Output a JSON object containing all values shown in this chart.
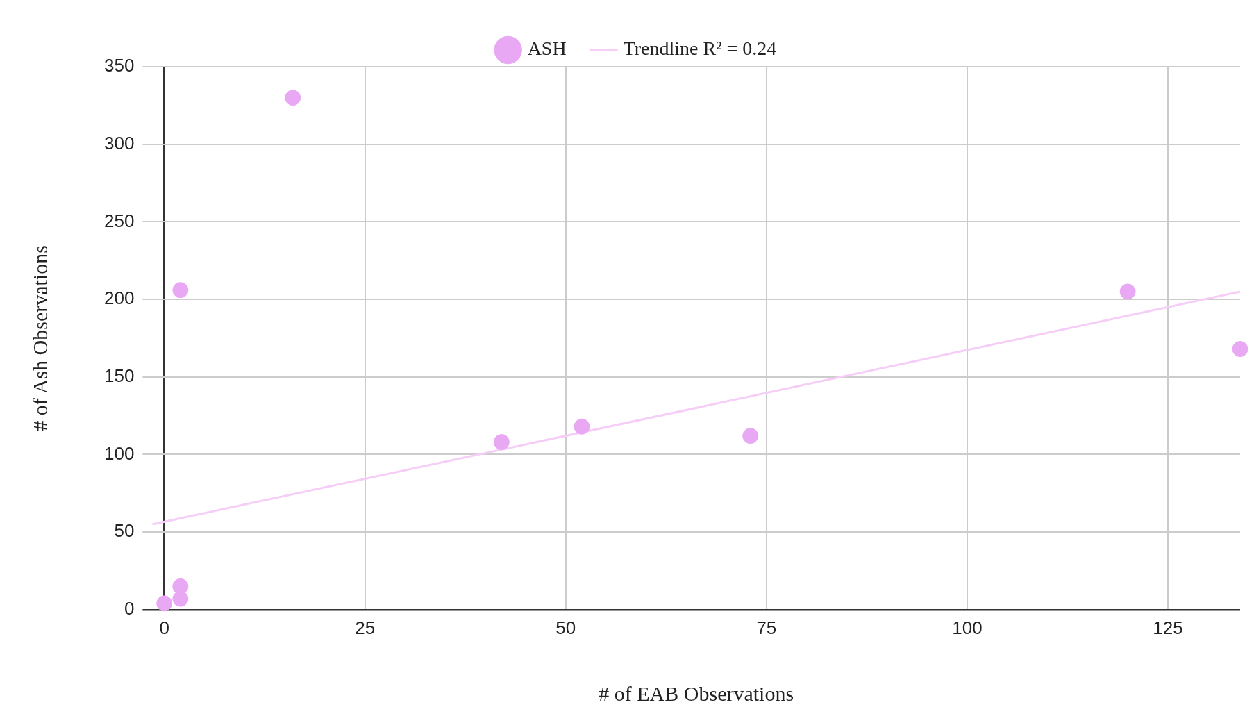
{
  "chart_data": {
    "type": "scatter",
    "xlabel": "# of EAB Observations",
    "ylabel": "# of Ash Observations",
    "series": [
      {
        "name": "ASH",
        "color": "#e9a8f3",
        "marker": "circle",
        "x": [
          0,
          2,
          2,
          2,
          16,
          42,
          52,
          73,
          120,
          134
        ],
        "values": [
          4,
          7,
          15,
          206,
          330,
          108,
          118,
          112,
          205,
          168
        ]
      },
      {
        "name": "Trendline R² = 0.24",
        "type": "line",
        "color": "#f5cdf7",
        "x": [
          -1.5,
          134
        ],
        "values": [
          55,
          205
        ]
      }
    ],
    "xlim": [
      -1.5,
      134
    ],
    "xticks": [
      0,
      25,
      50,
      75,
      100,
      125
    ],
    "ylim": [
      0,
      350
    ],
    "yticks": [
      0,
      50,
      100,
      150,
      200,
      250,
      300,
      350
    ],
    "grid": true,
    "legend": "top"
  }
}
